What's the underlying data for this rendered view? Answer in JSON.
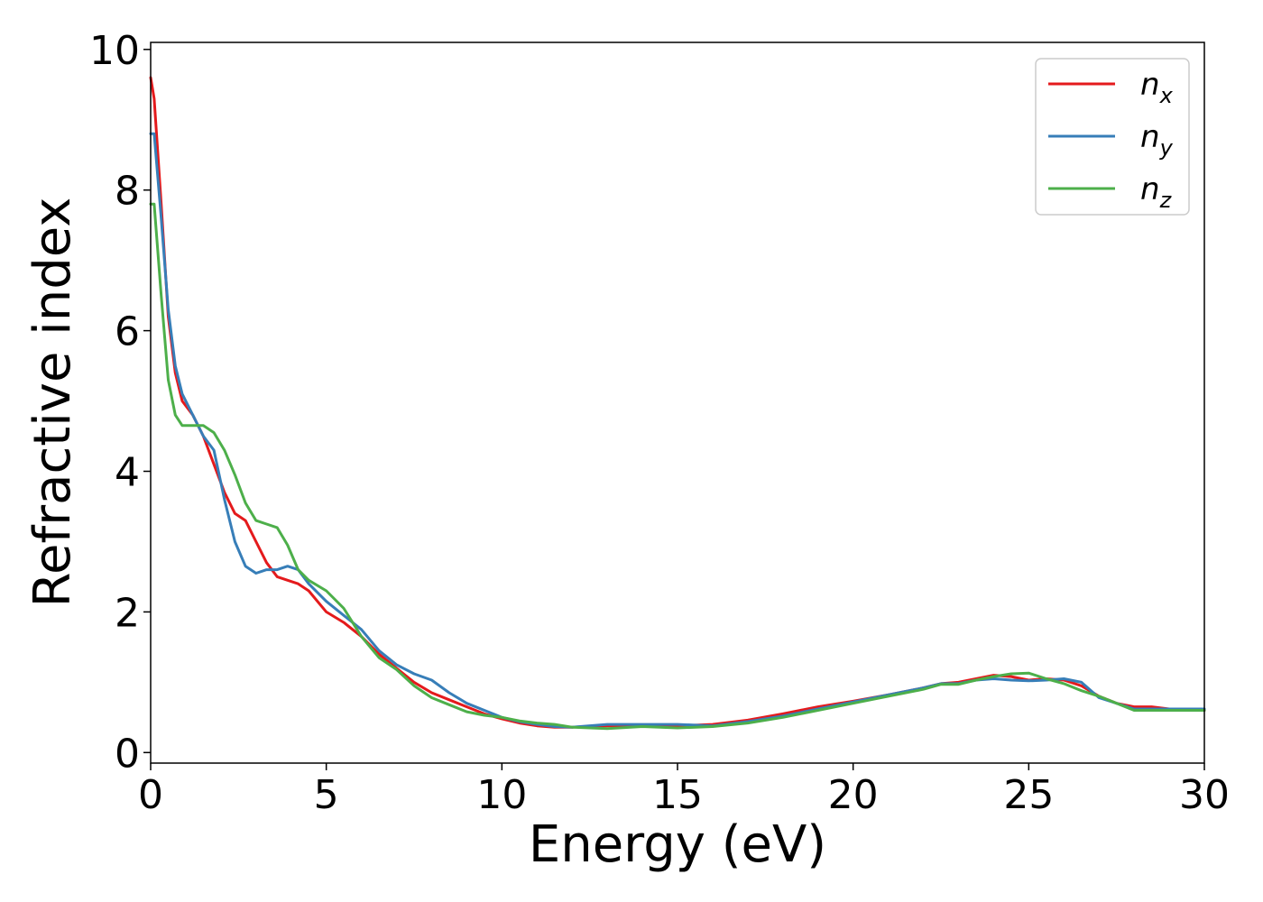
{
  "chart_data": {
    "type": "line",
    "title": "",
    "xlabel": "Energy (eV)",
    "ylabel": "Refractive index",
    "xlim": [
      0,
      30
    ],
    "ylim": [
      -0.15,
      10.1
    ],
    "xticks": [
      0,
      5,
      10,
      15,
      20,
      25,
      30
    ],
    "yticks": [
      0,
      2,
      4,
      6,
      8,
      10
    ],
    "grid": false,
    "legend_position": "top-right",
    "series": [
      {
        "name": "n",
        "subscript": "x",
        "color": "#e41a1c",
        "x": [
          0,
          0.1,
          0.3,
          0.5,
          0.7,
          0.9,
          1.2,
          1.5,
          1.8,
          2.1,
          2.4,
          2.7,
          3.0,
          3.3,
          3.6,
          3.9,
          4.2,
          4.5,
          5.0,
          5.5,
          6.0,
          6.5,
          7.0,
          7.5,
          8.0,
          8.5,
          9.0,
          9.5,
          10.0,
          10.5,
          11.0,
          11.5,
          12.0,
          13.0,
          14.0,
          15.0,
          16.0,
          17.0,
          18.0,
          19.0,
          20.0,
          21.0,
          22.0,
          22.5,
          23.0,
          23.5,
          24.0,
          24.5,
          25.0,
          25.5,
          26.0,
          26.5,
          27.0,
          27.5,
          28.0,
          28.5,
          29.0,
          29.5,
          30.0
        ],
        "y": [
          9.6,
          9.3,
          7.8,
          6.2,
          5.4,
          5.0,
          4.8,
          4.5,
          4.1,
          3.7,
          3.4,
          3.3,
          3.0,
          2.7,
          2.5,
          2.45,
          2.4,
          2.3,
          2.0,
          1.85,
          1.65,
          1.4,
          1.2,
          1.0,
          0.85,
          0.75,
          0.65,
          0.55,
          0.48,
          0.42,
          0.38,
          0.36,
          0.36,
          0.38,
          0.39,
          0.38,
          0.4,
          0.46,
          0.55,
          0.65,
          0.73,
          0.82,
          0.92,
          0.98,
          1.0,
          1.05,
          1.1,
          1.08,
          1.03,
          1.05,
          1.03,
          0.95,
          0.8,
          0.7,
          0.65,
          0.65,
          0.62,
          0.6,
          0.6
        ]
      },
      {
        "name": "n",
        "subscript": "y",
        "color": "#377eb8",
        "x": [
          0,
          0.1,
          0.3,
          0.5,
          0.7,
          0.9,
          1.2,
          1.5,
          1.8,
          2.1,
          2.4,
          2.7,
          3.0,
          3.3,
          3.6,
          3.9,
          4.2,
          4.5,
          5.0,
          5.5,
          6.0,
          6.5,
          7.0,
          7.5,
          8.0,
          8.5,
          9.0,
          9.5,
          10.0,
          10.5,
          11.0,
          11.5,
          12.0,
          13.0,
          14.0,
          15.0,
          16.0,
          17.0,
          18.0,
          19.0,
          20.0,
          21.0,
          22.0,
          22.5,
          23.0,
          23.5,
          24.0,
          24.5,
          25.0,
          25.5,
          26.0,
          26.5,
          27.0,
          27.5,
          28.0,
          28.5,
          29.0,
          29.5,
          30.0
        ],
        "y": [
          8.8,
          8.8,
          7.6,
          6.3,
          5.5,
          5.1,
          4.8,
          4.5,
          4.3,
          3.6,
          3.0,
          2.65,
          2.55,
          2.6,
          2.6,
          2.65,
          2.6,
          2.4,
          2.15,
          1.95,
          1.75,
          1.45,
          1.25,
          1.12,
          1.03,
          0.85,
          0.7,
          0.6,
          0.5,
          0.44,
          0.4,
          0.37,
          0.36,
          0.4,
          0.4,
          0.4,
          0.38,
          0.44,
          0.52,
          0.62,
          0.72,
          0.82,
          0.92,
          0.98,
          0.98,
          1.03,
          1.05,
          1.03,
          1.02,
          1.03,
          1.05,
          1.0,
          0.78,
          0.7,
          0.62,
          0.62,
          0.62,
          0.62,
          0.62
        ]
      },
      {
        "name": "n",
        "subscript": "z",
        "color": "#4daf4a",
        "x": [
          0,
          0.1,
          0.3,
          0.5,
          0.7,
          0.9,
          1.2,
          1.5,
          1.8,
          2.1,
          2.4,
          2.7,
          3.0,
          3.3,
          3.6,
          3.9,
          4.2,
          4.5,
          5.0,
          5.5,
          6.0,
          6.5,
          7.0,
          7.5,
          8.0,
          8.5,
          9.0,
          9.5,
          10.0,
          10.5,
          11.0,
          11.5,
          12.0,
          13.0,
          14.0,
          15.0,
          16.0,
          17.0,
          18.0,
          19.0,
          20.0,
          21.0,
          22.0,
          22.5,
          23.0,
          23.5,
          24.0,
          24.5,
          25.0,
          25.5,
          26.0,
          26.5,
          27.0,
          27.5,
          28.0,
          28.5,
          29.0,
          29.5,
          30.0
        ],
        "y": [
          7.8,
          7.8,
          6.5,
          5.3,
          4.8,
          4.65,
          4.65,
          4.65,
          4.55,
          4.3,
          3.95,
          3.55,
          3.3,
          3.25,
          3.2,
          2.95,
          2.6,
          2.45,
          2.3,
          2.05,
          1.65,
          1.35,
          1.18,
          0.95,
          0.78,
          0.68,
          0.58,
          0.53,
          0.5,
          0.45,
          0.42,
          0.4,
          0.36,
          0.34,
          0.37,
          0.35,
          0.37,
          0.42,
          0.5,
          0.6,
          0.7,
          0.8,
          0.9,
          0.97,
          0.97,
          1.03,
          1.08,
          1.12,
          1.13,
          1.05,
          0.98,
          0.88,
          0.8,
          0.7,
          0.6,
          0.6,
          0.6,
          0.6,
          0.6
        ]
      }
    ]
  }
}
